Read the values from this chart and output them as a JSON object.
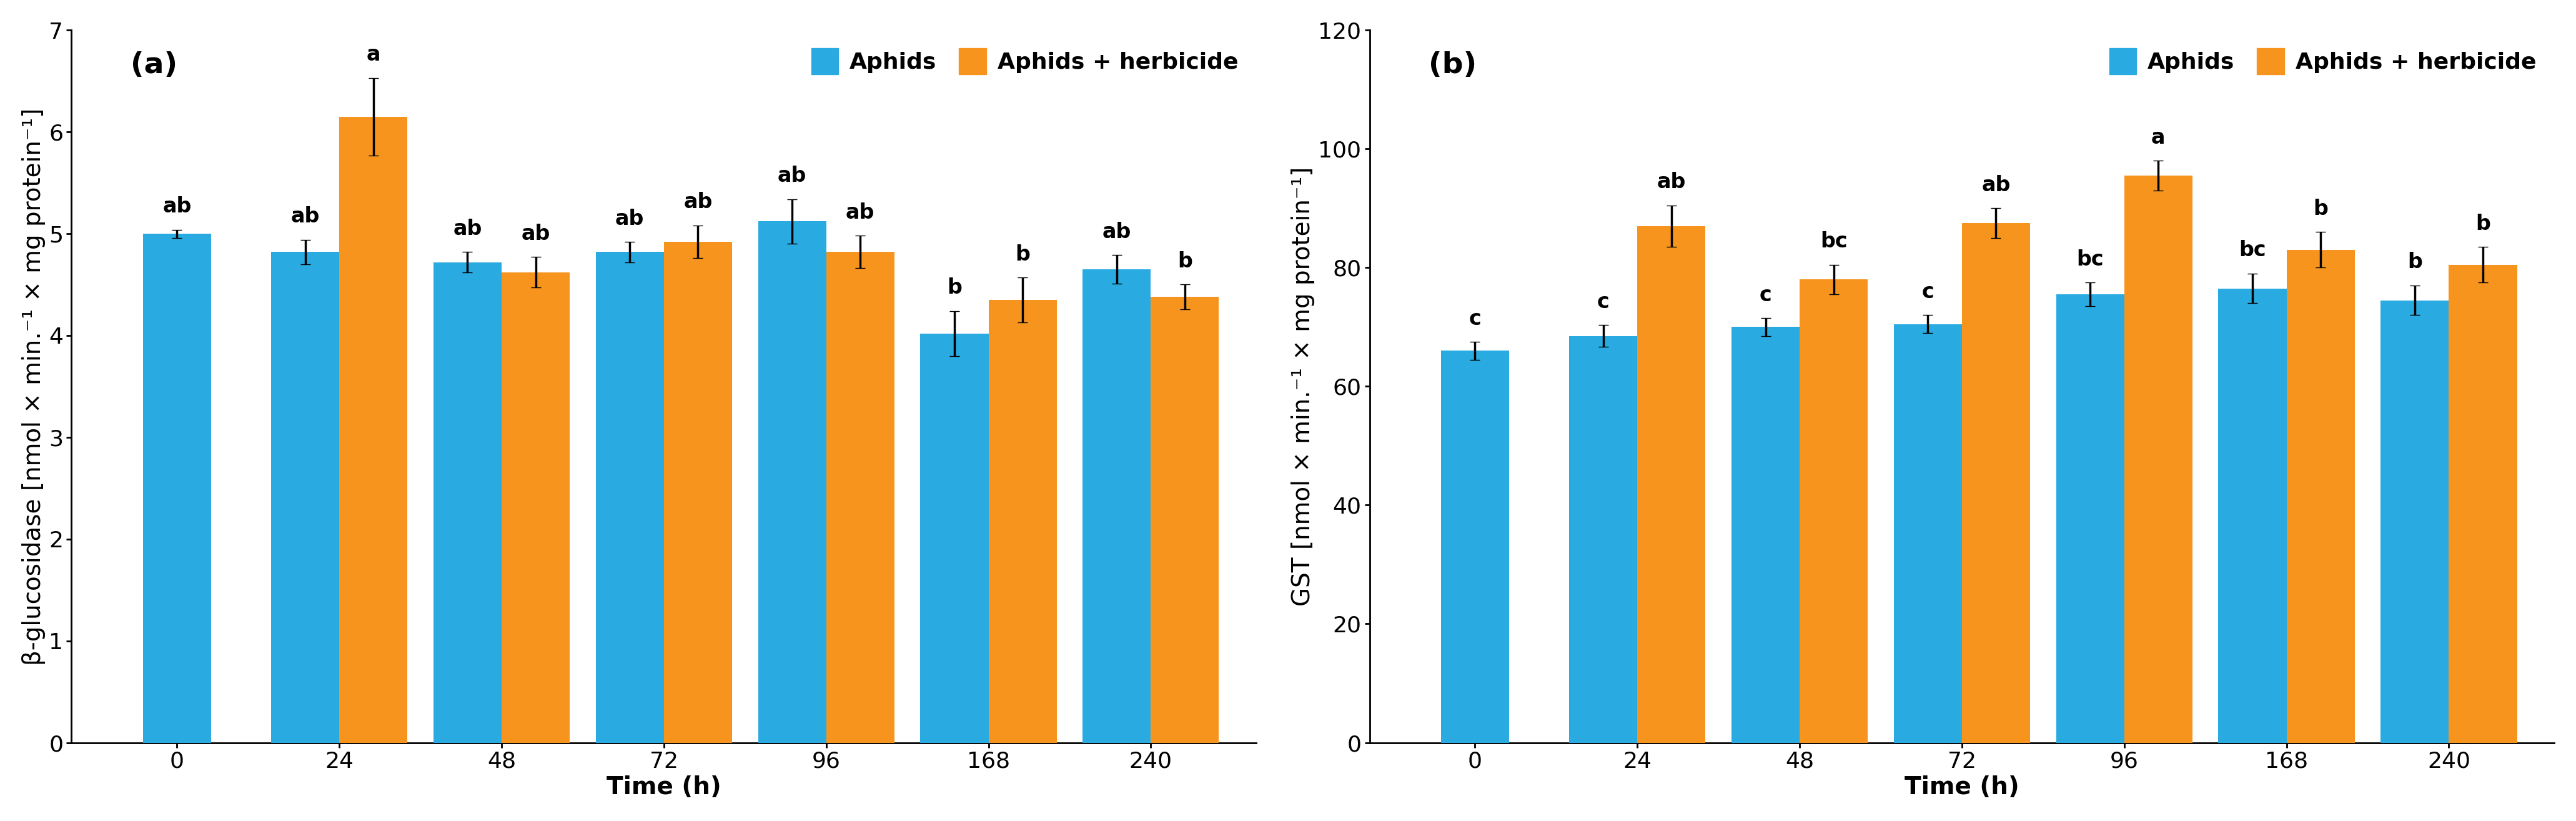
{
  "panel_a": {
    "title": "(a)",
    "ylabel": "β-glucosidase [nmol × min.⁻¹ × mg protein⁻¹]",
    "xlabel": "Time (h)",
    "ylim": [
      0,
      7
    ],
    "yticks": [
      0,
      1,
      2,
      3,
      4,
      5,
      6,
      7
    ],
    "time_points": [
      0,
      24,
      48,
      72,
      96,
      168,
      240
    ],
    "blue_values": [
      5.0,
      4.82,
      4.72,
      4.82,
      5.12,
      4.02,
      4.65
    ],
    "orange_values": [
      null,
      6.15,
      4.62,
      4.92,
      4.82,
      4.35,
      4.38
    ],
    "blue_errors": [
      0.04,
      0.12,
      0.1,
      0.1,
      0.22,
      0.22,
      0.14
    ],
    "orange_errors": [
      null,
      0.38,
      0.15,
      0.16,
      0.16,
      0.22,
      0.12
    ],
    "blue_labels": [
      "ab",
      "ab",
      "ab",
      "ab",
      "ab",
      "b",
      "ab"
    ],
    "orange_labels": [
      null,
      "a",
      "ab",
      "ab",
      "ab",
      "b",
      "b"
    ]
  },
  "panel_b": {
    "title": "(b)",
    "ylabel": "GST [nmol × min.⁻¹ × mg protein⁻¹]",
    "xlabel": "Time (h)",
    "ylim": [
      0,
      120
    ],
    "yticks": [
      0,
      20,
      40,
      60,
      80,
      100,
      120
    ],
    "time_points": [
      0,
      24,
      48,
      72,
      96,
      168,
      240
    ],
    "blue_values": [
      66.0,
      68.5,
      70.0,
      70.5,
      75.5,
      76.5,
      74.5
    ],
    "orange_values": [
      null,
      87.0,
      78.0,
      87.5,
      95.5,
      83.0,
      80.5
    ],
    "blue_errors": [
      1.5,
      1.8,
      1.5,
      1.5,
      2.0,
      2.5,
      2.5
    ],
    "orange_errors": [
      null,
      3.5,
      2.5,
      2.5,
      2.5,
      3.0,
      3.0
    ],
    "blue_labels": [
      "c",
      "c",
      "c",
      "c",
      "bc",
      "bc",
      "b"
    ],
    "orange_labels": [
      null,
      "ab",
      "bc",
      "ab",
      "a",
      "b",
      "b"
    ]
  },
  "blue_color": "#29ABE2",
  "orange_color": "#F7941D",
  "bar_width": 0.42,
  "legend_labels": [
    "Aphids",
    "Aphids + herbicide"
  ],
  "background_color": "#ffffff",
  "label_fontsize": 28,
  "tick_fontsize": 26,
  "title_fontsize": 34,
  "annotation_fontsize": 24,
  "legend_fontsize": 26
}
